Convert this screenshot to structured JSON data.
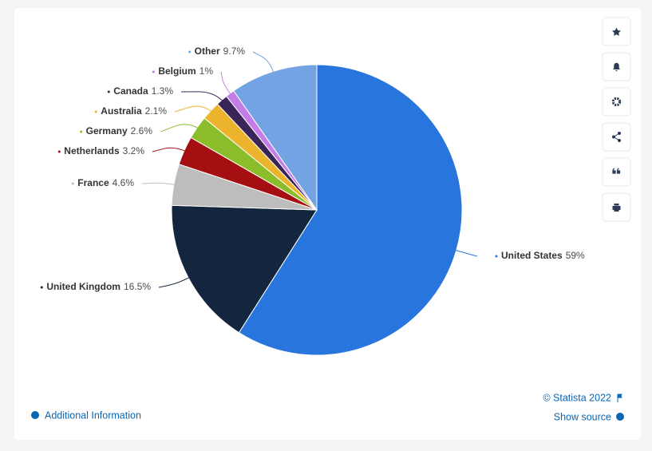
{
  "chart_data": {
    "type": "pie",
    "categories": [
      "United States",
      "United Kingdom",
      "France",
      "Netherlands",
      "Germany",
      "Australia",
      "Canada",
      "Belgium",
      "Other"
    ],
    "values": [
      59,
      16.5,
      4.6,
      3.2,
      2.6,
      2.1,
      1.3,
      1,
      9.7
    ],
    "value_labels": [
      "59%",
      "16.5%",
      "4.6%",
      "3.2%",
      "2.6%",
      "2.1%",
      "1.3%",
      "1%",
      "9.7%"
    ],
    "colors": [
      "#2876dd",
      "#14253e",
      "#bdbdbd",
      "#a50f12",
      "#8bbd2a",
      "#ebb42c",
      "#3a2558",
      "#c47de6",
      "#74a3e4"
    ]
  },
  "footer": {
    "credit": "© Statista 2022",
    "source": "Show source",
    "info": "Additional Information"
  }
}
